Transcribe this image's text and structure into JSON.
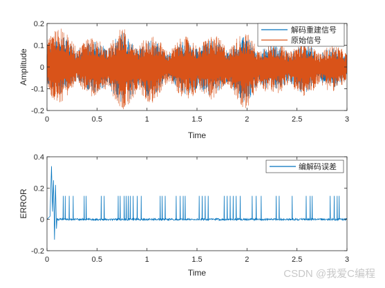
{
  "watermark": "CSDN @我爱C编程",
  "chart_data": [
    {
      "type": "line",
      "xlabel": "Time",
      "ylabel": "Amplitude",
      "xlim": [
        0,
        3
      ],
      "ylim": [
        -0.2,
        0.2
      ],
      "xticks": [
        0,
        0.5,
        1,
        1.5,
        2,
        2.5,
        3
      ],
      "xtick_labels": [
        "0",
        "0.5",
        "1",
        "1.5",
        "2",
        "2.5",
        "3"
      ],
      "yticks": [
        -0.2,
        -0.1,
        0,
        0.1,
        0.2
      ],
      "ytick_labels": [
        "-0.2",
        "-0.1",
        "0",
        "0.1",
        "0.2"
      ],
      "legend_position": "top-right",
      "series": [
        {
          "name": "解码重建信号",
          "color": "#0072BD",
          "x": [
            0,
            0.25,
            0.5,
            0.75,
            1.0,
            1.25,
            1.5,
            1.75,
            2.0,
            2.25,
            2.5,
            2.75,
            3.0
          ],
          "y_upper": [
            0.17,
            0.13,
            0.12,
            0.16,
            0.13,
            0.1,
            0.14,
            0.12,
            0.14,
            0.1,
            0.11,
            0.1,
            0.08
          ],
          "y_lower": [
            -0.15,
            -0.1,
            -0.12,
            -0.18,
            -0.15,
            -0.09,
            -0.16,
            -0.11,
            -0.17,
            -0.1,
            -0.12,
            -0.11,
            -0.08
          ]
        },
        {
          "name": "原始信号",
          "color": "#D95319",
          "x": [
            0,
            0.25,
            0.5,
            0.75,
            1.0,
            1.25,
            1.5,
            1.75,
            2.0,
            2.25,
            2.5,
            2.75,
            3.0
          ],
          "y_upper": [
            0.22,
            0.15,
            0.13,
            0.18,
            0.15,
            0.12,
            0.16,
            0.14,
            0.16,
            0.11,
            0.12,
            0.11,
            0.09
          ],
          "y_lower": [
            -0.21,
            -0.13,
            -0.14,
            -0.2,
            -0.18,
            -0.11,
            -0.18,
            -0.13,
            -0.2,
            -0.12,
            -0.14,
            -0.13,
            -0.09
          ]
        }
      ]
    },
    {
      "type": "line",
      "xlabel": "Time",
      "ylabel": "ERROR",
      "xlim": [
        0,
        3
      ],
      "ylim": [
        -0.2,
        0.4
      ],
      "xticks": [
        0,
        0.5,
        1,
        1.5,
        2,
        2.5,
        3
      ],
      "xtick_labels": [
        "0",
        "0.5",
        "1",
        "1.5",
        "2",
        "2.5",
        "3"
      ],
      "yticks": [
        -0.2,
        0,
        0.2,
        0.4
      ],
      "ytick_labels": [
        "-0.2",
        "0",
        "0.2",
        "0.4"
      ],
      "legend_position": "top-right",
      "series": [
        {
          "name": "编解码误差",
          "color": "#0072BD",
          "initial_transient": {
            "x": [
              0.03,
              0.045,
              0.055,
              0.065,
              0.075,
              0.085,
              0.095
            ],
            "y": [
              0.02,
              0.34,
              0.05,
              0.25,
              -0.13,
              0.22,
              -0.06
            ]
          },
          "spike_times": [
            0.16,
            0.18,
            0.22,
            0.26,
            0.37,
            0.39,
            0.54,
            0.57,
            0.71,
            0.73,
            0.77,
            0.79,
            0.81,
            0.83,
            0.86,
            0.9,
            0.94,
            1.13,
            1.15,
            1.18,
            1.29,
            1.33,
            1.36,
            1.38,
            1.52,
            1.55,
            1.58,
            1.61,
            1.77,
            1.8,
            1.83,
            1.86,
            1.89,
            1.93,
            2.05,
            2.09,
            2.14,
            2.29,
            2.32,
            2.45,
            2.59,
            2.63,
            2.65,
            2.83,
            2.87,
            2.9,
            2.92
          ],
          "spike_height": 0.15
        }
      ]
    }
  ]
}
